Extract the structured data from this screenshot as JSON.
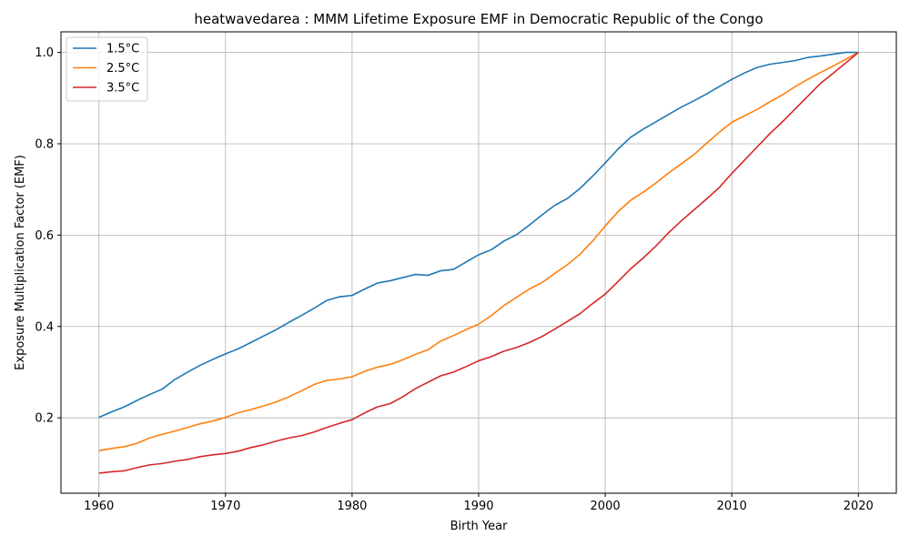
{
  "chart_data": {
    "type": "line",
    "title": "heatwavedarea : MMM Lifetime Exposure EMF in Democratic Republic of the Congo",
    "xlabel": "Birth Year",
    "ylabel": "Exposure Multiplication Factor (EMF)",
    "xlim": [
      1957,
      2023
    ],
    "ylim": [
      0.035,
      1.045
    ],
    "xticks": [
      1960,
      1970,
      1980,
      1990,
      2000,
      2010,
      2020
    ],
    "xtick_labels": [
      "1960",
      "1970",
      "1980",
      "1990",
      "2000",
      "2010",
      "2020"
    ],
    "yticks": [
      0.2,
      0.4,
      0.6,
      0.8,
      1.0
    ],
    "ytick_labels": [
      "0.2",
      "0.4",
      "0.6",
      "0.8",
      "1.0"
    ],
    "grid": true,
    "legend_position": "top-left",
    "x": [
      1960,
      1961,
      1962,
      1963,
      1964,
      1965,
      1966,
      1967,
      1968,
      1969,
      1970,
      1971,
      1972,
      1973,
      1974,
      1975,
      1976,
      1977,
      1978,
      1979,
      1980,
      1981,
      1982,
      1983,
      1984,
      1985,
      1986,
      1987,
      1988,
      1989,
      1990,
      1991,
      1992,
      1993,
      1994,
      1995,
      1996,
      1997,
      1998,
      1999,
      2000,
      2001,
      2002,
      2003,
      2004,
      2005,
      2006,
      2007,
      2008,
      2009,
      2010,
      2011,
      2012,
      2013,
      2014,
      2015,
      2016,
      2017,
      2018,
      2019,
      2020
    ],
    "series": [
      {
        "name": "1.5°C",
        "color": "#1f77b4",
        "values": [
          0.201,
          0.213,
          0.224,
          0.238,
          0.251,
          0.263,
          0.284,
          0.3,
          0.315,
          0.328,
          0.34,
          0.351,
          0.365,
          0.379,
          0.393,
          0.409,
          0.424,
          0.44,
          0.457,
          0.465,
          0.468,
          0.482,
          0.495,
          0.5,
          0.507,
          0.514,
          0.512,
          0.522,
          0.525,
          0.541,
          0.557,
          0.568,
          0.587,
          0.601,
          0.622,
          0.644,
          0.665,
          0.68,
          0.702,
          0.729,
          0.758,
          0.788,
          0.814,
          0.832,
          0.848,
          0.864,
          0.88,
          0.894,
          0.909,
          0.925,
          0.941,
          0.955,
          0.967,
          0.974,
          0.978,
          0.982,
          0.989,
          0.992,
          0.996,
          1.0,
          1.0
        ]
      },
      {
        "name": "2.5°C",
        "color": "#ff7f0e",
        "values": [
          0.128,
          0.133,
          0.137,
          0.144,
          0.156,
          0.164,
          0.171,
          0.179,
          0.187,
          0.193,
          0.201,
          0.211,
          0.218,
          0.226,
          0.235,
          0.246,
          0.259,
          0.273,
          0.282,
          0.285,
          0.29,
          0.302,
          0.311,
          0.317,
          0.327,
          0.339,
          0.349,
          0.368,
          0.38,
          0.393,
          0.405,
          0.424,
          0.446,
          0.464,
          0.482,
          0.496,
          0.516,
          0.535,
          0.558,
          0.587,
          0.62,
          0.651,
          0.676,
          0.694,
          0.714,
          0.736,
          0.756,
          0.776,
          0.801,
          0.825,
          0.847,
          0.861,
          0.875,
          0.892,
          0.907,
          0.925,
          0.941,
          0.956,
          0.97,
          0.985,
          1.0
        ]
      },
      {
        "name": "3.5°C",
        "color": "#d62728",
        "values": [
          0.079,
          0.082,
          0.084,
          0.091,
          0.097,
          0.1,
          0.105,
          0.109,
          0.115,
          0.119,
          0.122,
          0.127,
          0.135,
          0.141,
          0.149,
          0.156,
          0.161,
          0.169,
          0.179,
          0.188,
          0.196,
          0.211,
          0.224,
          0.231,
          0.246,
          0.264,
          0.278,
          0.292,
          0.3,
          0.312,
          0.325,
          0.334,
          0.346,
          0.354,
          0.365,
          0.378,
          0.394,
          0.411,
          0.428,
          0.45,
          0.471,
          0.498,
          0.526,
          0.55,
          0.576,
          0.605,
          0.631,
          0.655,
          0.679,
          0.704,
          0.735,
          0.764,
          0.793,
          0.822,
          0.848,
          0.876,
          0.904,
          0.932,
          0.954,
          0.977,
          1.0
        ]
      }
    ]
  }
}
